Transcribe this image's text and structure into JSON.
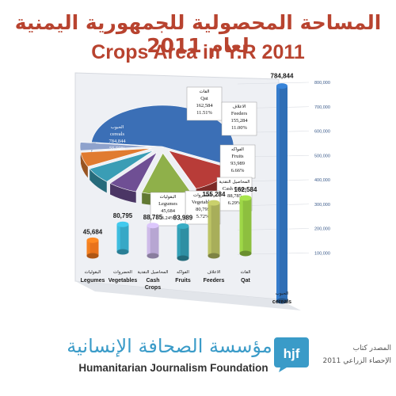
{
  "header": {
    "title_ar": "المساحة المحصولية للجمهورية اليمنية لعام 2011",
    "title_en": "Crops Area in Y.R 2011"
  },
  "chart_data": [
    {
      "type": "pie",
      "slices": [
        {
          "label_ar": "الحبوب",
          "label_en": "cereals",
          "value": 784844,
          "value_text": "784,844",
          "percent": "55.59%",
          "color": "#3b6fb6"
        },
        {
          "label_ar": "القات",
          "label_en": "Qat",
          "value": 162584,
          "value_text": "162,584",
          "percent": "11.51%",
          "color": "#b83c38"
        },
        {
          "label_ar": "الاعلاف",
          "label_en": "Feeders",
          "value": 155284,
          "value_text": "155,284",
          "percent": "11.00%",
          "color": "#8fb04a"
        },
        {
          "label_ar": "الفواكه",
          "label_en": "Fruits",
          "value": 93989,
          "value_text": "93,989",
          "percent": "6.66%",
          "color": "#6f4f94"
        },
        {
          "label_ar": "المحاصيل النقدية",
          "label_en": "Cash Crops",
          "value": 88785,
          "value_text": "88,785",
          "percent": "6.29%",
          "color": "#3a9db5"
        },
        {
          "label_ar": "الخضروات",
          "label_en": "Vegetables",
          "value": 80795,
          "value_text": "80,795",
          "percent": "5.72%",
          "color": "#e07b30"
        },
        {
          "label_ar": "البقوليات",
          "label_en": "Legumes",
          "value": 45684,
          "value_text": "45,684",
          "percent": "3.24%",
          "color": "#8ea2cc"
        }
      ]
    },
    {
      "type": "bar",
      "categories": [
        {
          "label_ar": "البقوليات",
          "label_en": "Legumes",
          "label_en_extra": ""
        },
        {
          "label_ar": "الخضروات",
          "label_en": "Vegetables",
          "label_en_extra": ""
        },
        {
          "label_ar": "المحاصيل النقدية",
          "label_en": "Cash",
          "label_en_extra": "Crops"
        },
        {
          "label_ar": "الفواكه",
          "label_en": "Fruits",
          "label_en_extra": ""
        },
        {
          "label_ar": "الاعلاف",
          "label_en": "Feeders",
          "label_en_extra": ""
        },
        {
          "label_ar": "القات",
          "label_en": "Qat",
          "label_en_extra": ""
        },
        {
          "label_ar": "الحبوب",
          "label_en": "cereals",
          "label_en_extra": ""
        }
      ],
      "values": [
        45684,
        80795,
        88785,
        93989,
        155284,
        162584,
        784844
      ],
      "value_labels": [
        "45,684",
        "80,795",
        "88,785",
        "93,989",
        "155,284",
        "162,584",
        "784,844"
      ],
      "colors": [
        "#e8721c",
        "#37a8c6",
        "#b7a6d2",
        "#2e8fa3",
        "#a8ae5a",
        "#8dbf3f",
        "#2f6eb5"
      ],
      "yticks": [
        "100,000",
        "200,000",
        "300,000",
        "400,000",
        "500,000",
        "600,000",
        "700,000",
        "800,000"
      ],
      "ylim": [
        0,
        800000
      ]
    }
  ],
  "footer": {
    "org_ar": "مؤسسة الصحافة الإنسانية",
    "org_en": "Humanitarian Journalism Foundation",
    "logo_text": "hjf",
    "source_line1": "المصدر كتاب",
    "source_line2": "الإحصاء الزراعي 2011",
    "accent_color": "#3a9bc8"
  }
}
